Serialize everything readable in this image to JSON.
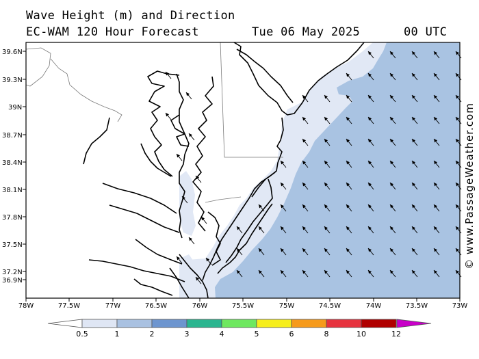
{
  "header": {
    "title_line1": "Wave Height (m) and Direction",
    "title_line2": "EC-WAM 120 Hour Forecast",
    "date": "Tue 06 May 2025",
    "run_time": "00 UTC"
  },
  "credit": "© www.PassageWeather.com",
  "latitude_labels": [
    "39.6N",
    "39.3N",
    "39N",
    "38.7N",
    "38.4N",
    "38.1N",
    "37.8N",
    "37.5N",
    "37.2N",
    "36.9N"
  ],
  "longitude_labels": [
    "78W",
    "77.5W",
    "77W",
    "76.5W",
    "76W",
    "75.5W",
    "75W",
    "74.5W",
    "74W",
    "73.5W",
    "73W"
  ],
  "colorbar": {
    "labels": [
      "0.5",
      "1",
      "2",
      "3",
      "4",
      "5",
      "6",
      "8",
      "10",
      "12"
    ],
    "colors": [
      "#ffffff",
      "#dfe6f4",
      "#a9c1e1",
      "#6d95cf",
      "#2ab58f",
      "#6ee85f",
      "#f6ee1b",
      "#f69a1b",
      "#e6323e",
      "#b00000",
      "#c800c8"
    ]
  },
  "wave_field": {
    "direction_arrows": "toward northwest",
    "colors": {
      "land": "#ffffff",
      "under_1m": "#e1e8f5",
      "one_to_2m": "#a9c3e2"
    }
  }
}
